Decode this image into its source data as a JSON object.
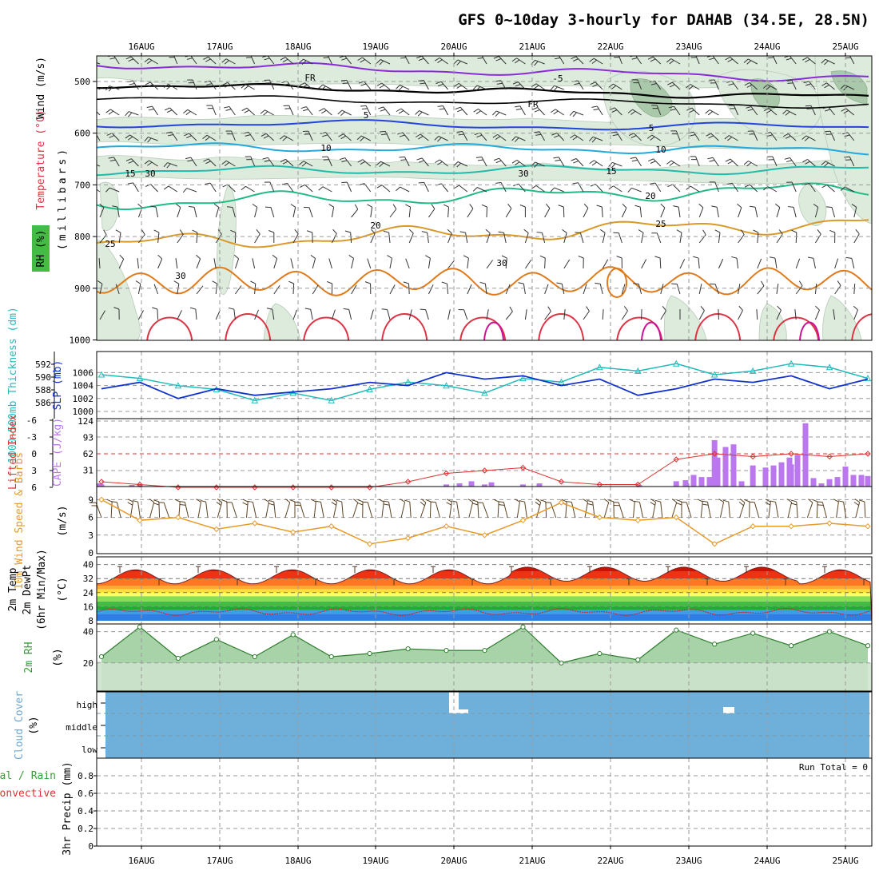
{
  "title": "GFS 0~10day 3-hourly for DAHAB (34.5E, 28.5N)",
  "dates": [
    "16AUG",
    "17AUG",
    "18AUG",
    "19AUG",
    "20AUG",
    "21AUG",
    "22AUG",
    "23AUG",
    "24AUG",
    "25AUG"
  ],
  "colors": {
    "frame": "#000000",
    "grid": "#9a9a9a",
    "rh_fill": "#dcebdc",
    "slp": "#1133cc",
    "thick": "#22bbbb",
    "cape": "#bb77ee",
    "li": "#dd3333",
    "wind10": "#e69a2a",
    "barb": "#5a4020",
    "rh2m": "#3a9a3a",
    "cloud": "#6fb0da",
    "iso_m5": "#8a2bd8",
    "iso_5": "#2244dd",
    "iso_10": "#22aadd",
    "iso_15": "#22bbaa",
    "iso_20": "#22bb88",
    "iso_25": "#d99a2a",
    "iso_30": "#e07a1a",
    "iso_35": "#dd3344",
    "iso_40": "#cc1199"
  },
  "panels": {
    "upper": {
      "ylabel_wind": "Wind (m/s)",
      "ylabel_temp": "Temperature (°C)",
      "ylabel_rh": "RH (%)",
      "ylabel_pres": "(millibars)",
      "yticks": [
        "500",
        "600",
        "700",
        "800",
        "900",
        "1000"
      ],
      "contour_labels": [
        "-5",
        "-5",
        "FR",
        "FR",
        "5",
        "5",
        "10",
        "10",
        "15",
        "15",
        "20",
        "20",
        "25",
        "25",
        "30",
        "30",
        "30",
        "30"
      ]
    },
    "slp": {
      "ylabel_thick": "1000~500mb Thickness (dm)",
      "ylabel_slp": "SLP (mb)",
      "thick_ticks": [
        "592",
        "590",
        "588",
        "586"
      ],
      "slp_ticks": [
        "1006",
        "1004",
        "1002",
        "1000"
      ]
    },
    "cape": {
      "ylabel_li": "Lifted Index",
      "ylabel_cape": "CAPE (J/kg)",
      "li_ticks": [
        "-6",
        "-3",
        "0",
        "3",
        "6"
      ],
      "cape_ticks": [
        "124",
        "93",
        "62",
        "31"
      ]
    },
    "wind10": {
      "ylabel": "10m Wind Speed & Barbs",
      "ylabel_unit": "(m/s)",
      "ticks": [
        "9",
        "6",
        "3",
        "0"
      ]
    },
    "temp2m": {
      "ylabel_a": "2m Temp",
      "ylabel_b": "2m DewPt",
      "ylabel_c": "(6hr Min/Max)",
      "ylabel_unit": "(°C)",
      "ticks": [
        "40",
        "32",
        "24",
        "16",
        "8"
      ]
    },
    "rh2m": {
      "ylabel": "2m RH",
      "ylabel_unit": "(%)",
      "ticks": [
        "40",
        "20"
      ]
    },
    "cloud": {
      "ylabel": "Cloud Cover",
      "ylabel_unit": "(%)",
      "levels": [
        "high",
        "middle",
        "low"
      ]
    },
    "precip": {
      "ylabel_a": "Total / Rain",
      "ylabel_b": "Convective",
      "ylabel_c": "3hr Precip (mm)",
      "ticks": [
        "0.8",
        "0.6",
        "0.4",
        "0.2",
        "0"
      ],
      "run_total": "Run Total = 0"
    }
  },
  "chart_data": [
    {
      "type": "line",
      "title": "Sea level pressure (mb) and 1000-500mb thickness (dm)",
      "x": [
        "15AUG 12Z",
        "16AUG 00Z",
        "16AUG 12Z",
        "17AUG 00Z",
        "17AUG 12Z",
        "18AUG 00Z",
        "18AUG 12Z",
        "19AUG 00Z",
        "19AUG 12Z",
        "20AUG 00Z",
        "20AUG 12Z",
        "21AUG 00Z",
        "21AUG 12Z",
        "22AUG 00Z",
        "22AUG 12Z",
        "23AUG 00Z",
        "23AUG 12Z",
        "24AUG 00Z",
        "24AUG 12Z",
        "25AUG 00Z",
        "25AUG 06Z"
      ],
      "series": [
        {
          "name": "SLP (mb)",
          "values": [
            1003.5,
            1004.5,
            1002,
            1003.5,
            1002.5,
            1003,
            1003.5,
            1004.5,
            1004,
            1006,
            1005,
            1005.5,
            1004,
            1005,
            1002.5,
            1003.5,
            1005,
            1004.5,
            1005.5,
            1003.5,
            1005
          ]
        },
        {
          "name": "Thickness (dm)",
          "values": [
            590,
            589.5,
            588.5,
            588,
            586.5,
            587.5,
            586.5,
            588,
            589,
            588.5,
            587.5,
            589.5,
            589,
            591,
            590.5,
            591.5,
            590,
            590.5,
            591.5,
            591,
            589.5
          ]
        }
      ],
      "ylim_slp": [
        999,
        1008
      ],
      "ylim_thick": [
        585,
        593
      ]
    },
    {
      "type": "bar",
      "title": "CAPE (J/kg) and Lifted Index",
      "x": [
        "15AUG 12Z",
        "16AUG 00Z",
        "16AUG 12Z",
        "17AUG 00Z",
        "17AUG 12Z",
        "18AUG 00Z",
        "18AUG 12Z",
        "19AUG 00Z",
        "19AUG 12Z",
        "20AUG 00Z",
        "20AUG 12Z",
        "21AUG 00Z",
        "21AUG 12Z",
        "22AUG 00Z",
        "22AUG 12Z",
        "23AUG 00Z",
        "23AUG 12Z",
        "24AUG 00Z",
        "24AUG 12Z",
        "25AUG 00Z",
        "25AUG 06Z"
      ],
      "series": [
        {
          "name": "CAPE (J/kg)",
          "values": [
            4,
            2,
            0,
            0,
            0,
            0,
            0,
            0,
            0,
            4,
            4,
            4,
            0,
            0,
            0,
            10,
            88,
            40,
            42,
            14,
            20
          ]
        },
        {
          "name": "Lifted Index",
          "values": [
            5,
            5.5,
            6,
            6,
            6,
            6,
            6,
            6,
            5,
            3.5,
            3,
            2.5,
            5,
            5.5,
            5.5,
            1,
            0,
            0.5,
            0,
            0.5,
            0
          ]
        }
      ],
      "ylim_cape": [
        0,
        155
      ],
      "ylim_li": [
        -6,
        6
      ]
    },
    {
      "type": "line",
      "title": "10m Wind Speed (m/s)",
      "x": [
        "15AUG 12Z",
        "16AUG 00Z",
        "16AUG 12Z",
        "17AUG 00Z",
        "17AUG 12Z",
        "18AUG 00Z",
        "18AUG 12Z",
        "19AUG 00Z",
        "19AUG 12Z",
        "20AUG 00Z",
        "20AUG 12Z",
        "21AUG 00Z",
        "21AUG 12Z",
        "22AUG 00Z",
        "22AUG 12Z",
        "23AUG 00Z",
        "23AUG 12Z",
        "24AUG 00Z",
        "24AUG 12Z",
        "25AUG 00Z",
        "25AUG 06Z"
      ],
      "series": [
        {
          "name": "Wind speed",
          "values": [
            9,
            5.5,
            6,
            4,
            5,
            3.5,
            4.5,
            1.5,
            2.5,
            4.5,
            3,
            5.5,
            8.5,
            6,
            5.5,
            6,
            1.5,
            4.5,
            4.5,
            5,
            4.5
          ]
        }
      ],
      "ylim": [
        0,
        10.5
      ]
    },
    {
      "type": "area",
      "title": "2m Temperature and Dew Point (°C)",
      "x": [
        "15AUG 12Z",
        "16AUG 00Z",
        "16AUG 12Z",
        "17AUG 00Z",
        "17AUG 12Z",
        "18AUG 00Z",
        "18AUG 12Z",
        "19AUG 00Z",
        "19AUG 12Z",
        "20AUG 00Z",
        "20AUG 12Z",
        "21AUG 00Z",
        "21AUG 12Z",
        "22AUG 00Z",
        "22AUG 12Z",
        "23AUG 00Z",
        "23AUG 12Z",
        "24AUG 00Z",
        "24AUG 12Z",
        "25AUG 00Z",
        "25AUG 06Z"
      ],
      "series": [
        {
          "name": "2m Temp",
          "values": [
            34,
            29,
            37,
            30,
            37,
            30,
            36,
            31,
            37,
            31,
            38,
            31,
            40,
            31,
            39,
            31,
            38,
            31,
            39,
            31,
            34
          ]
        },
        {
          "name": "2m DewPt",
          "values": [
            13,
            14,
            13,
            12,
            14,
            13,
            14,
            12,
            12,
            13,
            13,
            14,
            13,
            11,
            12,
            13,
            14,
            13,
            14,
            14,
            13
          ]
        }
      ],
      "ylim": [
        6,
        42
      ]
    },
    {
      "type": "area",
      "title": "2m RH (%)",
      "x": [
        "15AUG 12Z",
        "16AUG 00Z",
        "16AUG 12Z",
        "17AUG 00Z",
        "17AUG 12Z",
        "18AUG 00Z",
        "18AUG 12Z",
        "19AUG 00Z",
        "19AUG 12Z",
        "20AUG 00Z",
        "20AUG 12Z",
        "21AUG 00Z",
        "21AUG 12Z",
        "22AUG 00Z",
        "22AUG 12Z",
        "23AUG 00Z",
        "23AUG 12Z",
        "24AUG 00Z",
        "24AUG 12Z",
        "25AUG 00Z",
        "25AUG 06Z"
      ],
      "series": [
        {
          "name": "2m RH",
          "values": [
            24,
            43,
            23,
            35,
            24,
            38,
            24,
            26,
            29,
            28,
            28,
            43,
            20,
            26,
            22,
            41,
            32,
            39,
            31,
            40,
            31
          ]
        }
      ],
      "ylim": [
        0,
        44
      ]
    },
    {
      "type": "bar",
      "title": "3hr Precip (mm)",
      "x": [
        "15AUG 12Z",
        "25AUG 06Z"
      ],
      "series": [
        {
          "name": "Total / Rain",
          "values": [
            0,
            0
          ]
        }
      ],
      "ylim": [
        0,
        0.96
      ]
    }
  ]
}
